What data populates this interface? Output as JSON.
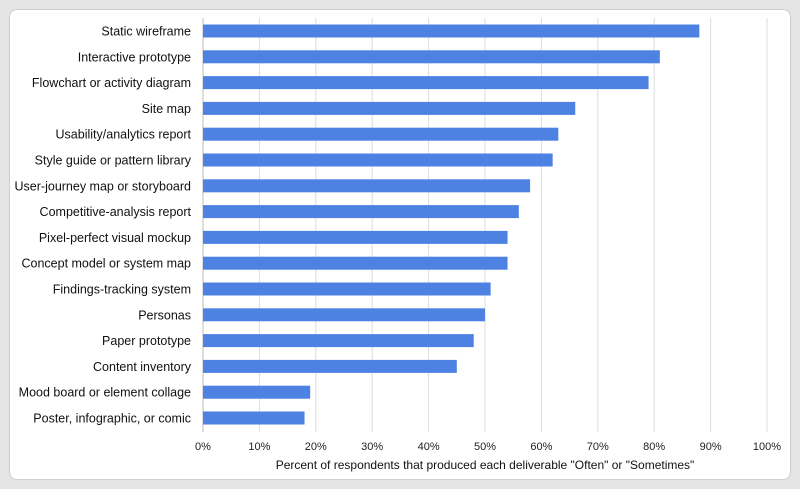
{
  "chart_data": {
    "type": "bar",
    "orientation": "horizontal",
    "categories": [
      "Static wireframe",
      "Interactive prototype",
      "Flowchart or activity diagram",
      "Site map",
      "Usability/analytics report",
      "Style guide or pattern library",
      "User-journey map or storyboard",
      "Competitive-analysis report",
      "Pixel-perfect visual mockup",
      "Concept model or system map",
      "Findings-tracking system",
      "Personas",
      "Paper prototype",
      "Content inventory",
      "Mood board or element collage",
      "Poster, infographic, or comic"
    ],
    "values": [
      88,
      81,
      79,
      66,
      63,
      62,
      58,
      56,
      54,
      54,
      51,
      50,
      48,
      45,
      19,
      18
    ],
    "xlabel": "Percent of respondents that produced each deliverable \"Often\" or \"Sometimes\"",
    "ylabel": "",
    "xlim": [
      0,
      100
    ],
    "xticks": [
      "0%",
      "10%",
      "20%",
      "30%",
      "40%",
      "50%",
      "60%",
      "70%",
      "80%",
      "90%",
      "100%"
    ],
    "grid": "vertical",
    "bar_color": "#4d82e3"
  }
}
